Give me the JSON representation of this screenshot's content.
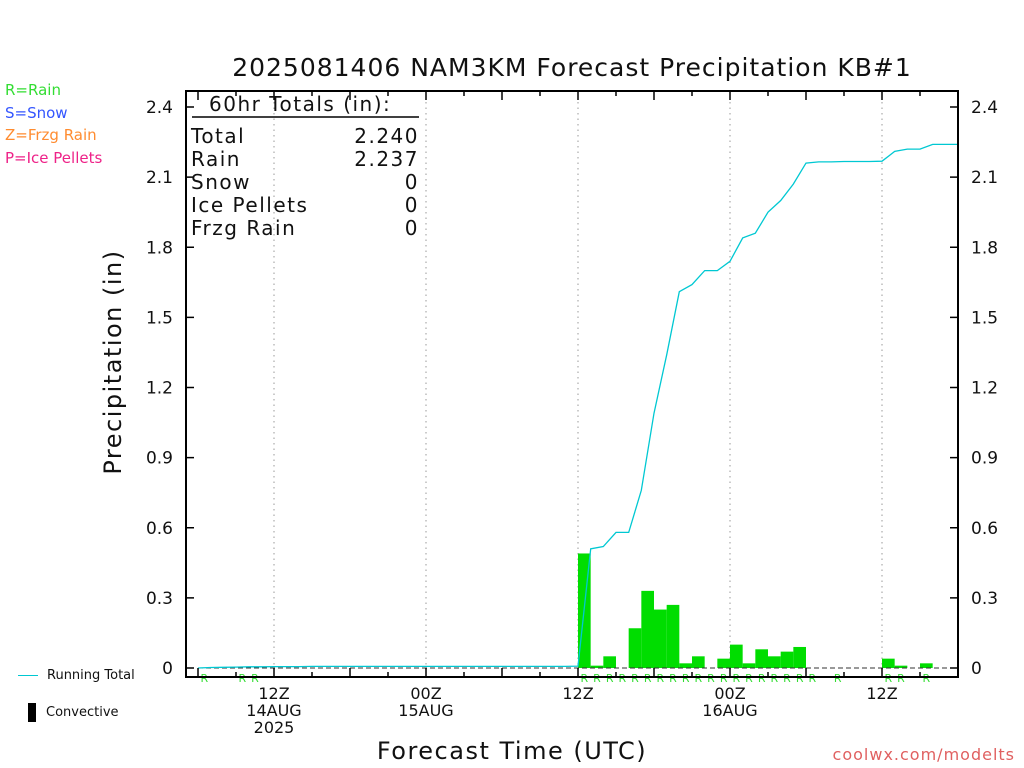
{
  "title": "2025081406 NAM3KM Forecast Precipitation KB#1",
  "xlabel": "Forecast Time (UTC)",
  "ylabel": "Precipitation (in)",
  "footer": "coolwx.com/modelts",
  "ptype_legend": [
    {
      "text": "R=Rain",
      "color": "#33dd33"
    },
    {
      "text": "S=Snow",
      "color": "#3355ff"
    },
    {
      "text": "Z=Frzg Rain",
      "color": "#ff8c30"
    },
    {
      "text": "P=Ice Pellets",
      "color": "#ee2288"
    }
  ],
  "legend": {
    "running_total": "Running Total",
    "convective": "Convective"
  },
  "totals_box": {
    "header": "60hr Totals (in):",
    "rows": [
      {
        "label": "Total",
        "value": "2.240"
      },
      {
        "label": "Rain",
        "value": "2.237"
      },
      {
        "label": "Snow",
        "value": "0"
      },
      {
        "label": "Ice Pellets",
        "value": "0"
      },
      {
        "label": "Frzg Rain",
        "value": "0"
      }
    ]
  },
  "colors": {
    "bar": "#00dd00",
    "running_total": "#00c8d2",
    "ptype_marker": "#33dd33"
  },
  "chart_data": {
    "type": "bar",
    "x_unit": "forecast hour",
    "xlim": [
      0,
      60
    ],
    "ylim": [
      0,
      2.4
    ],
    "yticks": [
      0,
      0.3,
      0.6,
      0.9,
      1.2,
      1.5,
      1.8,
      2.1,
      2.4
    ],
    "ytick_labels": [
      "0",
      "0.3",
      "0.6",
      "0.9",
      "1.2",
      "1.5",
      "1.8",
      "2.1",
      "2.4"
    ],
    "xticks": [
      {
        "hour": 6,
        "lines": [
          "12Z",
          "14AUG",
          "2025"
        ]
      },
      {
        "hour": 18,
        "lines": [
          "00Z",
          "15AUG"
        ]
      },
      {
        "hour": 30,
        "lines": [
          "12Z"
        ]
      },
      {
        "hour": 42,
        "lines": [
          "00Z",
          "16AUG"
        ]
      },
      {
        "hour": 54,
        "lines": [
          "12Z"
        ]
      }
    ],
    "grid": "vertical dotted at tick hours",
    "series": [
      {
        "name": "Precipitation",
        "type": "bar",
        "hours": [
          31,
          32,
          33,
          34,
          35,
          36,
          37,
          38,
          39,
          40,
          41,
          42,
          43,
          44,
          45,
          46,
          47,
          48,
          49,
          50,
          51,
          52,
          53,
          54,
          55,
          56,
          57,
          58,
          59,
          60
        ],
        "values": [
          0.49,
          0.01,
          0.05,
          0.0,
          0.17,
          0.33,
          0.25,
          0.27,
          0.02,
          0.05,
          0.0,
          0.04,
          0.1,
          0.02,
          0.08,
          0.05,
          0.07,
          0.09,
          0.0,
          0.0,
          0.0,
          0.0,
          0.0,
          0.0,
          0.04,
          0.01,
          0.0,
          0.02,
          0.0,
          0.0
        ]
      },
      {
        "name": "Running Total",
        "type": "line",
        "hours": [
          0,
          1,
          2,
          3,
          4,
          5,
          6,
          7,
          8,
          9,
          10,
          11,
          12,
          13,
          14,
          15,
          16,
          17,
          18,
          19,
          20,
          21,
          22,
          23,
          24,
          25,
          26,
          27,
          28,
          29,
          30,
          31,
          32,
          33,
          34,
          35,
          36,
          37,
          38,
          39,
          40,
          41,
          42,
          43,
          44,
          45,
          46,
          47,
          48,
          49,
          50,
          51,
          52,
          53,
          54,
          55,
          56,
          57,
          58,
          59,
          60
        ],
        "values": [
          0,
          0.002,
          0.003,
          0.004,
          0.005,
          0.005,
          0.006,
          0.006,
          0.006,
          0.007,
          0.007,
          0.007,
          0.007,
          0.007,
          0.007,
          0.007,
          0.007,
          0.007,
          0.007,
          0.007,
          0.007,
          0.007,
          0.007,
          0.007,
          0.007,
          0.007,
          0.007,
          0.007,
          0.007,
          0.007,
          0.008,
          0.51,
          0.52,
          0.58,
          0.58,
          0.76,
          1.09,
          1.34,
          1.61,
          1.64,
          1.7,
          1.7,
          1.74,
          1.84,
          1.86,
          1.95,
          2.0,
          2.07,
          2.16,
          2.165,
          2.165,
          2.167,
          2.167,
          2.167,
          2.168,
          2.21,
          2.22,
          2.22,
          2.24,
          2.24,
          2.24
        ]
      }
    ],
    "ptype_markers": {
      "label": "R",
      "hours": [
        1,
        4,
        5,
        31,
        32,
        33,
        34,
        35,
        36,
        37,
        38,
        39,
        40,
        41,
        42,
        43,
        44,
        45,
        46,
        47,
        48,
        49,
        51,
        55,
        56,
        58
      ]
    }
  }
}
